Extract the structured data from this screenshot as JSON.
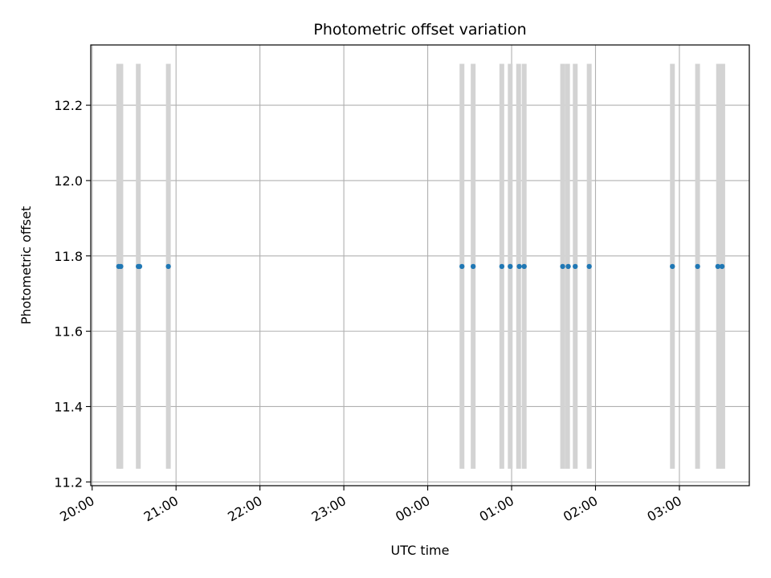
{
  "chart_data": {
    "type": "scatter",
    "title": "Photometric offset variation",
    "xlabel": "UTC time",
    "ylabel": "Photometric offset",
    "grid": true,
    "legend": "none",
    "colors": {
      "points": "#1f77b4",
      "bands": "#d3d3d3",
      "grid": "#b0b0b0"
    },
    "x_ticks": [
      {
        "t": 0,
        "label": "20:00"
      },
      {
        "t": 60,
        "label": "21:00"
      },
      {
        "t": 120,
        "label": "22:00"
      },
      {
        "t": 180,
        "label": "23:00"
      },
      {
        "t": 240,
        "label": "00:00"
      },
      {
        "t": 300,
        "label": "01:00"
      },
      {
        "t": 360,
        "label": "02:00"
      },
      {
        "t": 420,
        "label": "03:00"
      }
    ],
    "y_ticks": [
      11.2,
      11.4,
      11.6,
      11.8,
      12.0,
      12.2
    ],
    "xlim": [
      -1,
      470
    ],
    "ylim": [
      11.19,
      12.36
    ],
    "band_range": [
      11.235,
      12.31
    ],
    "bands": [
      19,
      20.5,
      33,
      54.5,
      264.5,
      272.5,
      293,
      299,
      305,
      309,
      336.5,
      340,
      345.5,
      355.5,
      415,
      433,
      448,
      451
    ],
    "points": [
      {
        "t": 19,
        "y": 11.772
      },
      {
        "t": 20.5,
        "y": 11.772
      },
      {
        "t": 33,
        "y": 11.772
      },
      {
        "t": 34,
        "y": 11.772
      },
      {
        "t": 54.5,
        "y": 11.772
      },
      {
        "t": 264.5,
        "y": 11.772
      },
      {
        "t": 272.5,
        "y": 11.772
      },
      {
        "t": 293,
        "y": 11.772
      },
      {
        "t": 299,
        "y": 11.772
      },
      {
        "t": 305.5,
        "y": 11.772
      },
      {
        "t": 309,
        "y": 11.772
      },
      {
        "t": 336.5,
        "y": 11.772
      },
      {
        "t": 340.5,
        "y": 11.772
      },
      {
        "t": 345.5,
        "y": 11.772
      },
      {
        "t": 355.5,
        "y": 11.772
      },
      {
        "t": 415,
        "y": 11.772
      },
      {
        "t": 433,
        "y": 11.772
      },
      {
        "t": 447.5,
        "y": 11.772
      },
      {
        "t": 450.5,
        "y": 11.772
      }
    ]
  }
}
